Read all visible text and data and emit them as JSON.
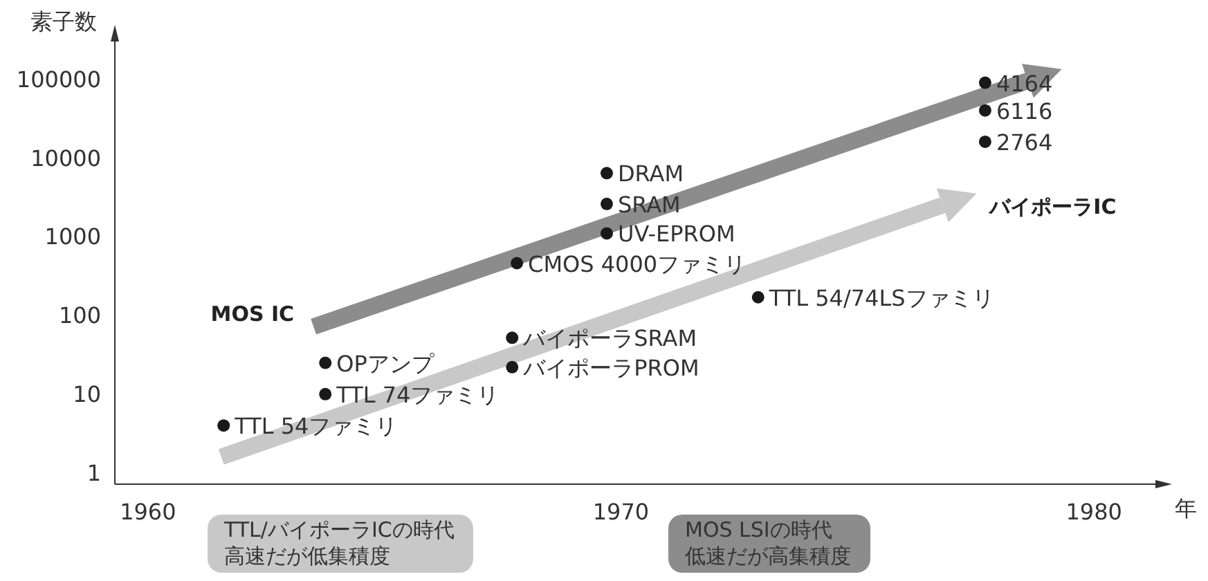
{
  "chart_data": {
    "type": "scatter",
    "xlabel": "年",
    "ylabel": "素子数",
    "xlim": [
      1959.3,
      1981.3
    ],
    "xticks": [
      1960,
      1970,
      1980
    ],
    "ylim": [
      0.72,
      300000
    ],
    "yticks": [
      1,
      10,
      100,
      1000,
      10000,
      100000
    ],
    "log": "y",
    "grid": false,
    "series": [
      {
        "color": "#1a1a1a",
        "marker": "circle",
        "x": [
          1961.6,
          1963.75,
          1963.75,
          1967.8,
          1967.7,
          1967.7,
          1969.7,
          1969.7,
          1969.7,
          1972.9,
          1977.7,
          1977.7,
          1977.7
        ],
        "values": [
          4,
          25,
          10,
          460,
          52,
          22,
          6400,
          2600,
          1100,
          170,
          90000,
          40000,
          16000
        ]
      },
      {
        "type": "line",
        "name": "MOS IC",
        "color": "#8c8c8c",
        "marker": "none",
        "x": [
          1963.5,
          1978.6
        ],
        "values": [
          72,
          95000
        ]
      },
      {
        "type": "line",
        "name": "バイポーラIC",
        "color": "#c8c8c8",
        "marker": "none",
        "x": [
          1961.55,
          1976.8
        ],
        "values": [
          1.6,
          2500
        ]
      }
    ],
    "annotations": [
      {
        "text": "TTL 54ファミリ",
        "x": 1961.6,
        "y": 4
      },
      {
        "text": "OPアンプ",
        "x": 1963.75,
        "y": 25
      },
      {
        "text": "TTL 74ファミリ",
        "x": 1963.75,
        "y": 10
      },
      {
        "text": "CMOS 4000ファミリ",
        "x": 1967.8,
        "y": 460
      },
      {
        "text": "バイポーラSRAM",
        "x": 1967.7,
        "y": 52
      },
      {
        "text": "バイポーラPROM",
        "x": 1967.7,
        "y": 22
      },
      {
        "text": "DRAM",
        "x": 1969.7,
        "y": 6400
      },
      {
        "text": "SRAM",
        "x": 1969.7,
        "y": 2600
      },
      {
        "text": "UV-EPROM",
        "x": 1969.7,
        "y": 1100
      },
      {
        "text": "TTL 54/74LSファミリ",
        "x": 1972.9,
        "y": 170
      },
      {
        "text": "4164",
        "x": 1977.7,
        "y": 90000
      },
      {
        "text": "6116",
        "x": 1977.7,
        "y": 40000
      },
      {
        "text": "2764",
        "x": 1977.7,
        "y": 16000
      },
      "TTL/バイポーラICの時代高速だが低集積度",
      "MOS LSIの時代低速だが高集積度"
    ]
  }
}
